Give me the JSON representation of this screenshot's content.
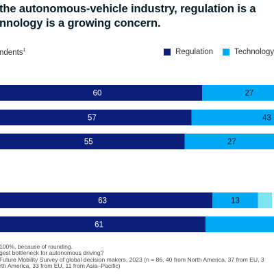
{
  "title_lines": [
    "the autonomous-vehicle industry, regulation is a",
    "nnology is a growing concern."
  ],
  "subtitle": "ndents",
  "subtitle_footnote_mark": "1",
  "legend": [
    {
      "label": "Regulation",
      "color": "#0b1f7a"
    },
    {
      "label": "Technology",
      "color": "#00a9f4"
    }
  ],
  "chart_data": {
    "type": "bar",
    "orientation": "horizontal",
    "stacked": true,
    "title": "",
    "xlabel": "",
    "ylabel": "",
    "groups": [
      {
        "rows": [
          {
            "segments": [
              60,
              27
            ],
            "labels": [
              "60",
              "27"
            ]
          },
          {
            "segments": [
              57,
              43
            ],
            "labels": [
              "57",
              "43"
            ]
          },
          {
            "segments": [
              55,
              27
            ],
            "labels": [
              "55",
              "27"
            ]
          }
        ]
      },
      {
        "rows": [
          {
            "segments": [
              63,
              13,
              4
            ],
            "labels": [
              "63",
              "13",
              ""
            ]
          },
          {
            "segments": [
              61,
              39
            ],
            "labels": [
              "61",
              ""
            ]
          }
        ]
      }
    ],
    "series": [
      {
        "name": "Regulation",
        "color": "#0b1f7a"
      },
      {
        "name": "Technology",
        "color": "#00a9f4"
      },
      {
        "name": "",
        "color": "#7fe3f2"
      }
    ]
  },
  "footnotes": [
    " 100%, because of rounding.",
    "gest bottleneck for autonomous driving?",
    "Future Mobility Survey of global decision makers, 2023 (n = 86, 40 from North America, 37 from EU, 3",
    "rth America, 33 from EU, 11 from Asia–Pacific)"
  ]
}
